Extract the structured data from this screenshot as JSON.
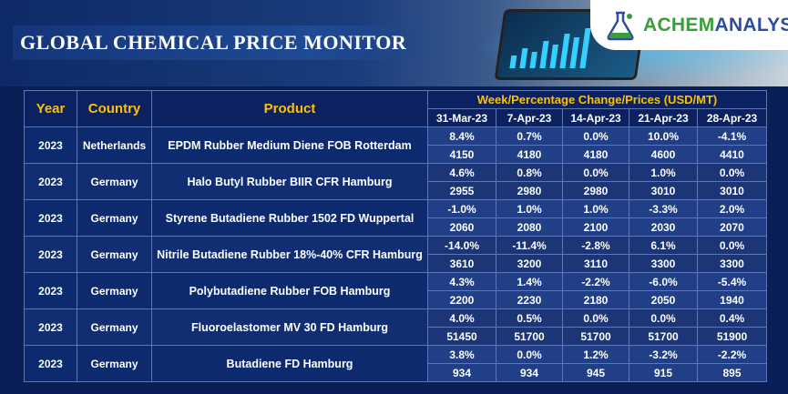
{
  "title": "GLOBAL CHEMICAL PRICE MONITOR",
  "brand": {
    "ach": "ACHEM",
    "rest": "ANALYST",
    "accent": "#3a9d3a",
    "primary": "#2b4f9e"
  },
  "colors": {
    "header_text": "#ffc000",
    "table_bg": "#203f86",
    "page_bg": "#0a1f55"
  },
  "table": {
    "headers": {
      "year": "Year",
      "country": "Country",
      "product": "Product",
      "group": "Week/Percentage Change/Prices (USD/MT)"
    },
    "dates": [
      "31-Mar-23",
      "7-Apr-23",
      "14-Apr-23",
      "21-Apr-23",
      "28-Apr-23"
    ],
    "rows": [
      {
        "year": "2023",
        "country": "Netherlands",
        "product": "EPDM Rubber Medium Diene FOB Rotterdam",
        "pct": [
          "8.4%",
          "0.7%",
          "0.0%",
          "10.0%",
          "-4.1%"
        ],
        "price": [
          "4150",
          "4180",
          "4180",
          "4600",
          "4410"
        ]
      },
      {
        "year": "2023",
        "country": "Germany",
        "product": "Halo Butyl Rubber BIIR CFR Hamburg",
        "pct": [
          "4.6%",
          "0.8%",
          "0.0%",
          "1.0%",
          "0.0%"
        ],
        "price": [
          "2955",
          "2980",
          "2980",
          "3010",
          "3010"
        ]
      },
      {
        "year": "2023",
        "country": "Germany",
        "product": "Styrene Butadiene Rubber 1502 FD Wuppertal",
        "pct": [
          "-1.0%",
          "1.0%",
          "1.0%",
          "-3.3%",
          "2.0%"
        ],
        "price": [
          "2060",
          "2080",
          "2100",
          "2030",
          "2070"
        ]
      },
      {
        "year": "2023",
        "country": "Germany",
        "product": "Nitrile Butadiene Rubber 18%-40% CFR Hamburg",
        "pct": [
          "-14.0%",
          "-11.4%",
          "-2.8%",
          "6.1%",
          "0.0%"
        ],
        "price": [
          "3610",
          "3200",
          "3110",
          "3300",
          "3300"
        ]
      },
      {
        "year": "2023",
        "country": "Germany",
        "product": "Polybutadiene Rubber FOB Hamburg",
        "pct": [
          "4.3%",
          "1.4%",
          "-2.2%",
          "-6.0%",
          "-5.4%"
        ],
        "price": [
          "2200",
          "2230",
          "2180",
          "2050",
          "1940"
        ]
      },
      {
        "year": "2023",
        "country": "Germany",
        "product": "Fluoroelastomer MV 30 FD Hamburg",
        "pct": [
          "4.0%",
          "0.5%",
          "0.0%",
          "0.0%",
          "0.4%"
        ],
        "price": [
          "51450",
          "51700",
          "51700",
          "51700",
          "51900"
        ]
      },
      {
        "year": "2023",
        "country": "Germany",
        "product": "Butadiene FD Hamburg",
        "pct": [
          "3.8%",
          "0.0%",
          "1.2%",
          "-3.2%",
          "-2.2%"
        ],
        "price": [
          "934",
          "934",
          "945",
          "915",
          "895"
        ]
      }
    ]
  }
}
